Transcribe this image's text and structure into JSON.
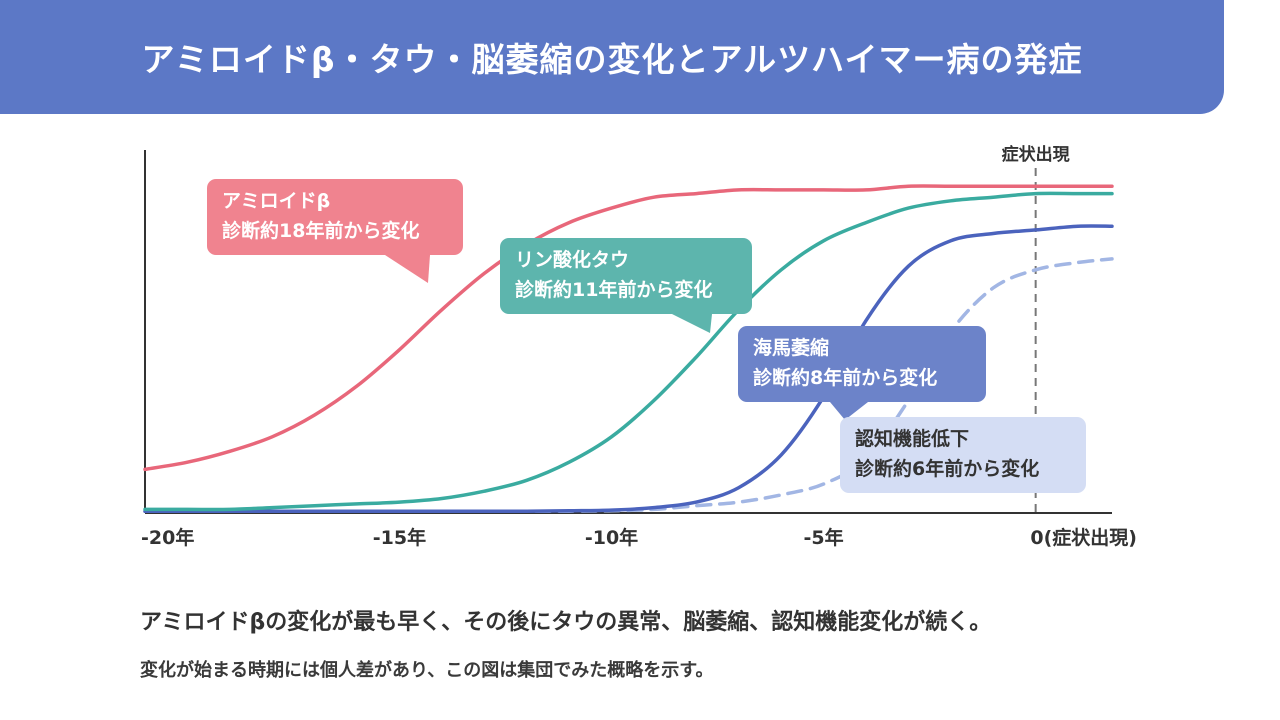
{
  "header": {
    "title": "アミロイドβ・タウ・脳萎縮の変化とアルツハイマー病の発症",
    "color": "#5c78c6"
  },
  "chart_data": {
    "type": "line",
    "xlim": [
      -21,
      1.8
    ],
    "ylim": [
      0,
      1
    ],
    "grid": false,
    "x_ticks": [
      {
        "value": -20,
        "label": "-20年"
      },
      {
        "value": -15,
        "label": "-15年"
      },
      {
        "value": -10,
        "label": "-10年"
      },
      {
        "value": -5,
        "label": "-5年"
      },
      {
        "value": 0,
        "label": "0(症状出現)"
      }
    ],
    "onset_marker": {
      "x": 0,
      "label": "症状出現"
    },
    "series": [
      {
        "label_lines": [
          "アミロイドβ",
          "診断約18年前から変化"
        ],
        "color": "#e8677a",
        "dashed": false,
        "x": [
          -21,
          -20,
          -19,
          -18,
          -17,
          -16,
          -15,
          -14,
          -13,
          -12,
          -11,
          -10,
          -9,
          -8,
          -7,
          -6,
          -5,
          -4,
          -3,
          -2,
          -1,
          0,
          1,
          1.8
        ],
        "y": [
          0.12,
          0.14,
          0.17,
          0.21,
          0.27,
          0.35,
          0.45,
          0.56,
          0.66,
          0.74,
          0.8,
          0.84,
          0.87,
          0.88,
          0.89,
          0.89,
          0.89,
          0.89,
          0.9,
          0.9,
          0.9,
          0.9,
          0.9,
          0.9
        ]
      },
      {
        "label_lines": [
          "リン酸化タウ",
          "診断約11年前から変化"
        ],
        "color": "#3aaba0",
        "dashed": false,
        "x": [
          -21,
          -20,
          -19,
          -18,
          -17,
          -16,
          -15,
          -14,
          -13,
          -12,
          -11,
          -10,
          -9,
          -8,
          -7,
          -6,
          -5,
          -4,
          -3,
          -2,
          -1,
          0,
          1,
          1.8
        ],
        "y": [
          0.01,
          0.01,
          0.01,
          0.015,
          0.02,
          0.025,
          0.03,
          0.04,
          0.06,
          0.09,
          0.14,
          0.21,
          0.31,
          0.43,
          0.56,
          0.67,
          0.75,
          0.8,
          0.84,
          0.86,
          0.87,
          0.88,
          0.88,
          0.88
        ]
      },
      {
        "label_lines": [
          "海馬萎縮",
          "診断約8年前から変化"
        ],
        "color": "#4b63bd",
        "dashed": false,
        "x": [
          -21,
          -20,
          -19,
          -18,
          -17,
          -16,
          -15,
          -14,
          -13,
          -12,
          -11,
          -10,
          -9,
          -8,
          -7,
          -6,
          -5,
          -4,
          -3,
          -2,
          -1,
          0,
          1,
          1.8
        ],
        "y": [
          0.005,
          0.005,
          0.005,
          0.005,
          0.005,
          0.005,
          0.005,
          0.005,
          0.005,
          0.005,
          0.006,
          0.008,
          0.015,
          0.03,
          0.07,
          0.16,
          0.32,
          0.53,
          0.68,
          0.75,
          0.77,
          0.78,
          0.79,
          0.79
        ]
      },
      {
        "label_lines": [
          "認知機能低下",
          "診断約6年前から変化"
        ],
        "color": "#a2b6e4",
        "dashed": true,
        "x": [
          -21,
          -20,
          -19,
          -18,
          -17,
          -16,
          -15,
          -14,
          -13,
          -12,
          -11,
          -10,
          -9,
          -8,
          -7,
          -6,
          -5,
          -4,
          -3,
          -2,
          -1,
          0,
          1,
          1.8
        ],
        "y": [
          0.005,
          0.005,
          0.005,
          0.005,
          0.005,
          0.005,
          0.005,
          0.005,
          0.005,
          0.005,
          0.005,
          0.006,
          0.01,
          0.02,
          0.03,
          0.05,
          0.08,
          0.15,
          0.31,
          0.5,
          0.62,
          0.67,
          0.69,
          0.7
        ]
      }
    ]
  },
  "captions": {
    "main": "アミロイドβの変化が最も早く、その後にタウの異常、脳萎縮、認知機能変化が続く。",
    "sub": "変化が始まる時期には個人差があり、この図は集団でみた概略を示す。"
  }
}
